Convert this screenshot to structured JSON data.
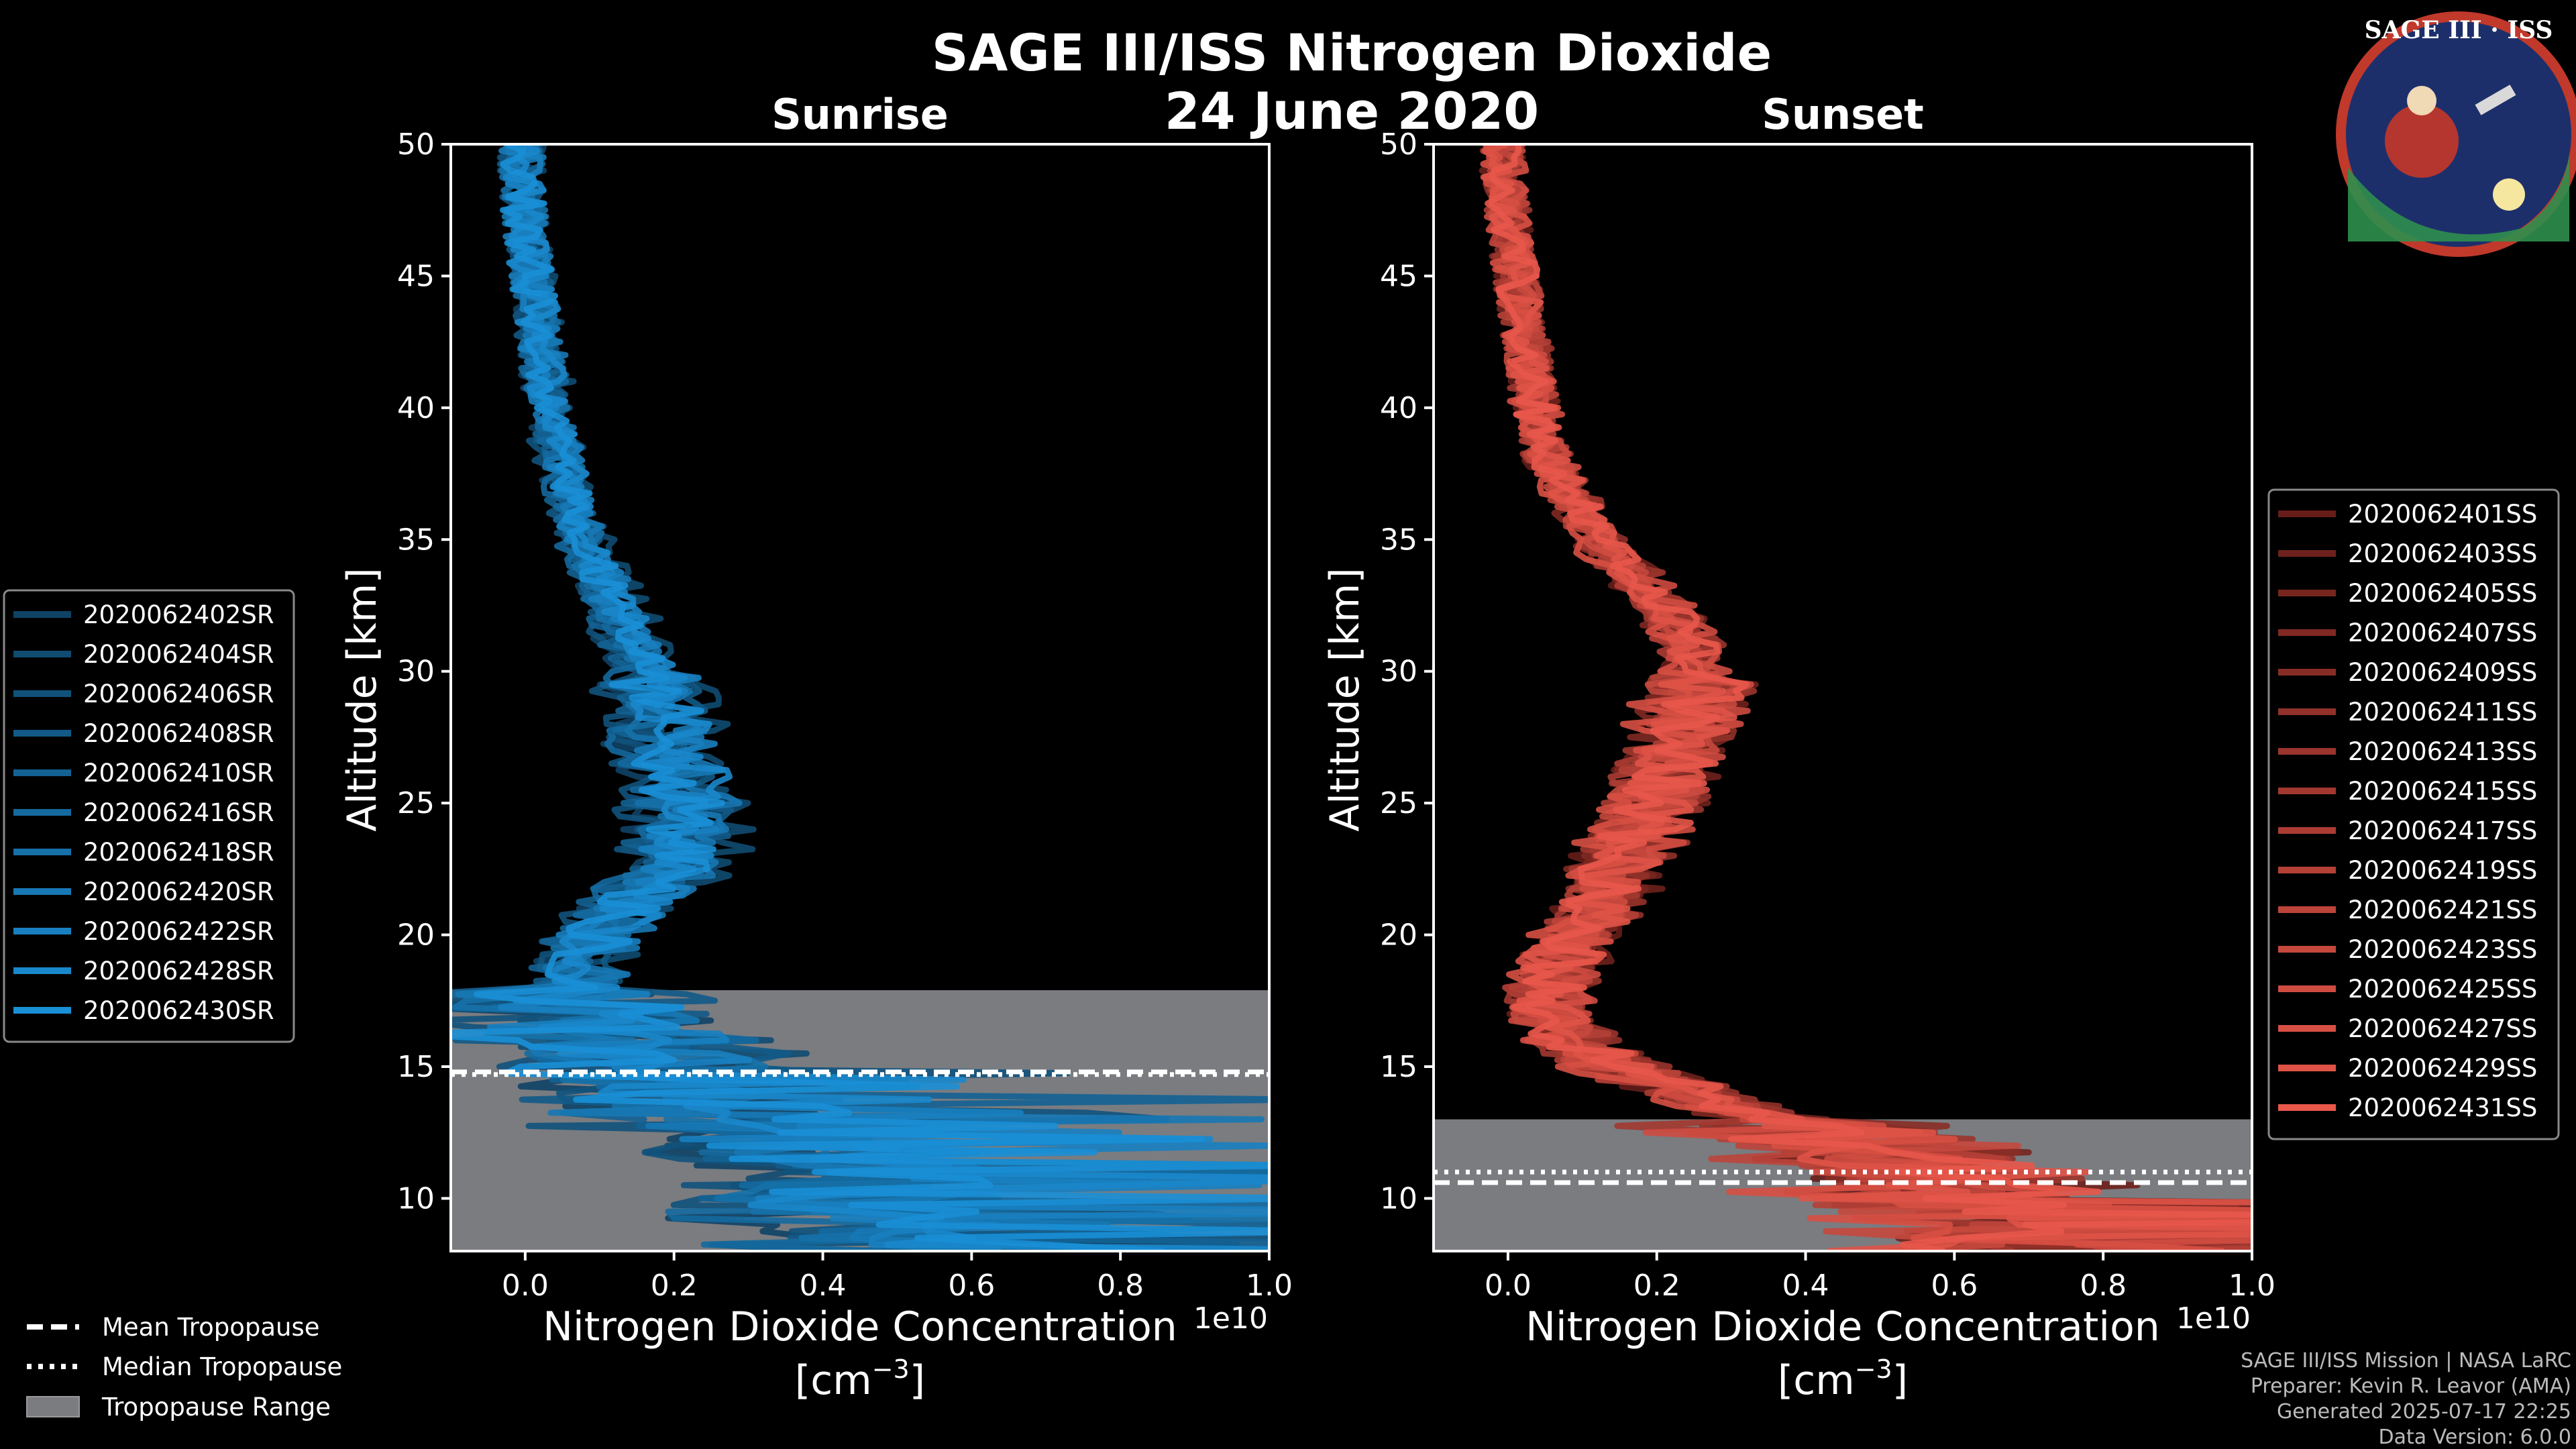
{
  "header": {
    "title": "SAGE III/ISS Nitrogen Dioxide",
    "date": "24 June 2020",
    "logo_text": "SAGE III · ISS"
  },
  "footer": {
    "line1": "SAGE III/ISS Mission | NASA LaRC",
    "line2": "Preparer: Kevin R. Leavor (AMA)",
    "line3": "Generated 2025-07-17 22:25",
    "line4": "Data Version: 6.0.0"
  },
  "colors": {
    "background": "#000000",
    "sunrise": "#1a8fd6",
    "sunset": "#e8574a",
    "tropopause_range": "#7a7c80"
  },
  "tropo_legend": {
    "mean": "Mean Tropopause",
    "median": "Median Tropopause",
    "range": "Tropopause Range"
  },
  "chart_data": [
    {
      "type": "line",
      "title": "Sunrise",
      "xlabel": "Nitrogen Dioxide Concentration",
      "xunit": "[cm",
      "xunit_exp": "−3",
      "xunit_close": "]",
      "xscale_label": "1e10",
      "ylabel": "Altitude [km]",
      "xlim": [
        -0.1,
        1.0
      ],
      "ylim": [
        8,
        50
      ],
      "xticks": [
        "0.0",
        "0.2",
        "0.4",
        "0.6",
        "0.8",
        "1.0"
      ],
      "yticks": [
        "10",
        "15",
        "20",
        "25",
        "30",
        "35",
        "40",
        "45",
        "50"
      ],
      "tropopause": {
        "min": 8.0,
        "max": 17.9,
        "mean": 14.8,
        "median": 14.7
      },
      "mean_profile": {
        "altitude": [
          9,
          10,
          11,
          12,
          13,
          14,
          15,
          16,
          17,
          18,
          19,
          20,
          21,
          22,
          23,
          24,
          25,
          26,
          27,
          28,
          29,
          30,
          31,
          32,
          33,
          34,
          35,
          36,
          37,
          38,
          39,
          40,
          41,
          42,
          43,
          44,
          45,
          46,
          47,
          48,
          49,
          50
        ],
        "value": [
          0.5,
          0.45,
          0.4,
          0.33,
          0.26,
          0.2,
          0.15,
          0.11,
          0.08,
          0.07,
          0.08,
          0.1,
          0.14,
          0.18,
          0.21,
          0.22,
          0.22,
          0.21,
          0.2,
          0.19,
          0.18,
          0.17,
          0.15,
          0.13,
          0.11,
          0.1,
          0.08,
          0.07,
          0.06,
          0.05,
          0.04,
          0.035,
          0.03,
          0.025,
          0.02,
          0.015,
          0.01,
          0.005,
          0.0,
          -0.005,
          -0.005,
          -0.005
        ]
      },
      "series": [
        {
          "name": "2020062402SR"
        },
        {
          "name": "2020062404SR"
        },
        {
          "name": "2020062406SR"
        },
        {
          "name": "2020062408SR"
        },
        {
          "name": "2020062410SR"
        },
        {
          "name": "2020062416SR"
        },
        {
          "name": "2020062418SR"
        },
        {
          "name": "2020062420SR"
        },
        {
          "name": "2020062422SR"
        },
        {
          "name": "2020062428SR"
        },
        {
          "name": "2020062430SR"
        }
      ]
    },
    {
      "type": "line",
      "title": "Sunset",
      "xlabel": "Nitrogen Dioxide Concentration",
      "xunit": "[cm",
      "xunit_exp": "−3",
      "xunit_close": "]",
      "xscale_label": "1e10",
      "ylabel": "Altitude [km]",
      "xlim": [
        -0.1,
        1.0
      ],
      "ylim": [
        8,
        50
      ],
      "xticks": [
        "0.0",
        "0.2",
        "0.4",
        "0.6",
        "0.8",
        "1.0"
      ],
      "yticks": [
        "10",
        "15",
        "20",
        "25",
        "30",
        "35",
        "40",
        "45",
        "50"
      ],
      "tropopause": {
        "min": 8.0,
        "max": 13.0,
        "mean": 10.6,
        "median": 11.0
      },
      "mean_profile": {
        "altitude": [
          9,
          10,
          11,
          12,
          13,
          14,
          15,
          16,
          17,
          18,
          19,
          20,
          21,
          22,
          23,
          24,
          25,
          26,
          27,
          28,
          29,
          30,
          31,
          32,
          33,
          34,
          35,
          36,
          37,
          38,
          39,
          40,
          41,
          42,
          43,
          44,
          45,
          46,
          47,
          48,
          49,
          50
        ],
        "value": [
          0.6,
          0.55,
          0.5,
          0.42,
          0.32,
          0.22,
          0.13,
          0.08,
          0.05,
          0.05,
          0.07,
          0.09,
          0.11,
          0.13,
          0.14,
          0.16,
          0.18,
          0.19,
          0.21,
          0.22,
          0.23,
          0.23,
          0.22,
          0.2,
          0.17,
          0.14,
          0.11,
          0.09,
          0.07,
          0.05,
          0.04,
          0.035,
          0.03,
          0.025,
          0.02,
          0.015,
          0.01,
          0.005,
          0.0,
          0.0,
          -0.005,
          -0.005
        ]
      },
      "series": [
        {
          "name": "2020062401SS"
        },
        {
          "name": "2020062403SS"
        },
        {
          "name": "2020062405SS"
        },
        {
          "name": "2020062407SS"
        },
        {
          "name": "2020062409SS"
        },
        {
          "name": "2020062411SS"
        },
        {
          "name": "2020062413SS"
        },
        {
          "name": "2020062415SS"
        },
        {
          "name": "2020062417SS"
        },
        {
          "name": "2020062419SS"
        },
        {
          "name": "2020062421SS"
        },
        {
          "name": "2020062423SS"
        },
        {
          "name": "2020062425SS"
        },
        {
          "name": "2020062427SS"
        },
        {
          "name": "2020062429SS"
        },
        {
          "name": "2020062431SS"
        }
      ]
    }
  ]
}
